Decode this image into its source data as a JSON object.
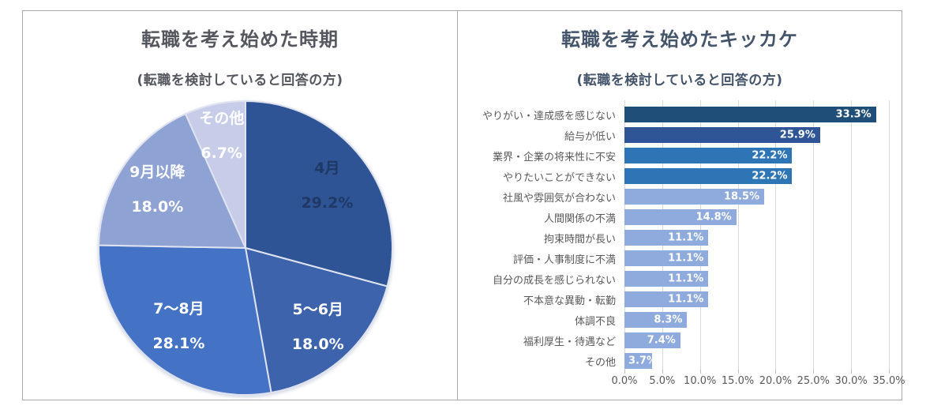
{
  "page": {
    "background": "#ffffff",
    "frame_border_color": "#a8a8a8"
  },
  "left_chart": {
    "title": "転職を考え始めた時期",
    "subtitle": "(転職を検討していると回答の方)",
    "title_color": "#55575e",
    "chart_data": {
      "type": "pie",
      "title": "転職を考え始めた時期",
      "subtitle": "(転職を検討していると回答の方)",
      "labels": [
        "4月",
        "5〜6月",
        "7〜8月",
        "9月以降",
        "その他"
      ],
      "values": [
        29.2,
        18.0,
        28.1,
        18.0,
        6.7
      ],
      "value_labels": [
        "29.2%",
        "18.0%",
        "28.1%",
        "18.0%",
        "6.7%"
      ],
      "colors": [
        "#2f5496",
        "#3c63ac",
        "#4472c4",
        "#8fa2d4",
        "#c7cde9"
      ],
      "label_colors": [
        "#1f3864",
        "#ffffff",
        "#ffffff",
        "#ffffff",
        "#ffffff"
      ],
      "label_radius": [
        0.7,
        0.73,
        0.7,
        0.72,
        0.78
      ],
      "slice_border_color": "#dfe3f0",
      "start_angle_deg": 0,
      "direction": "clockwise"
    }
  },
  "right_chart": {
    "title": "転職を考え始めたキッカケ",
    "subtitle": "(転職を検討していると回答の方)",
    "title_color": "#44546a",
    "chart_data": {
      "type": "bar",
      "orientation": "horizontal",
      "title": "転職を考え始めたキッカケ",
      "subtitle": "(転職を検討していると回答の方)",
      "categories": [
        "やりがい・達成感を感じない",
        "給与が低い",
        "業界・企業の将来性に不安",
        "やりたいことができない",
        "社風や雰囲気が合わない",
        "人間関係の不満",
        "拘束時間が長い",
        "評価・人事制度に不満",
        "自分の成長を感じられない",
        "不本意な異動・転勤",
        "体調不良",
        "福利厚生・待遇など",
        "その他"
      ],
      "values": [
        33.3,
        25.9,
        22.2,
        22.2,
        18.5,
        14.8,
        11.1,
        11.1,
        11.1,
        11.1,
        8.3,
        7.4,
        3.7
      ],
      "value_labels": [
        "33.3%",
        "25.9%",
        "22.2%",
        "22.2%",
        "18.5%",
        "14.8%",
        "11.1%",
        "11.1%",
        "11.1%",
        "11.1%",
        "8.3%",
        "7.4%",
        "3.7%"
      ],
      "bar_colors": [
        "#1f4e79",
        "#2f5597",
        "#2e75b6",
        "#2e75b6",
        "#8faadc",
        "#8faadc",
        "#8faadc",
        "#8faadc",
        "#8faadc",
        "#8faadc",
        "#8faadc",
        "#8faadc",
        "#8faadc"
      ],
      "value_label_color": "#ffffff",
      "xlim": [
        0,
        35
      ],
      "tick_values": [
        0,
        5,
        10,
        15,
        20,
        25,
        30,
        35
      ],
      "tick_labels": [
        "0.0%",
        "5.0%",
        "10.0%",
        "15.0%",
        "20.0%",
        "25.0%",
        "30.0%",
        "35.0%"
      ],
      "grid": true,
      "grid_color": "#d9d9d9",
      "legend": "none"
    }
  }
}
